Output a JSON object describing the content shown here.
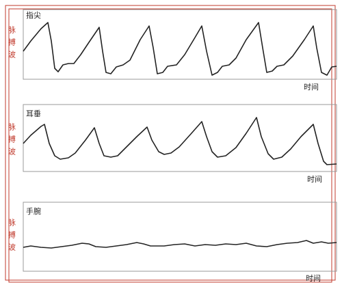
{
  "panels": [
    {
      "label": "指尖",
      "ylabel": "脉搏波",
      "xlabel": "时间"
    },
    {
      "label": "耳垂",
      "ylabel": "脉搏波",
      "xlabel": "时间"
    },
    {
      "label": "手腕",
      "ylabel": "脉搏波",
      "xlabel": "时间"
    }
  ]
}
